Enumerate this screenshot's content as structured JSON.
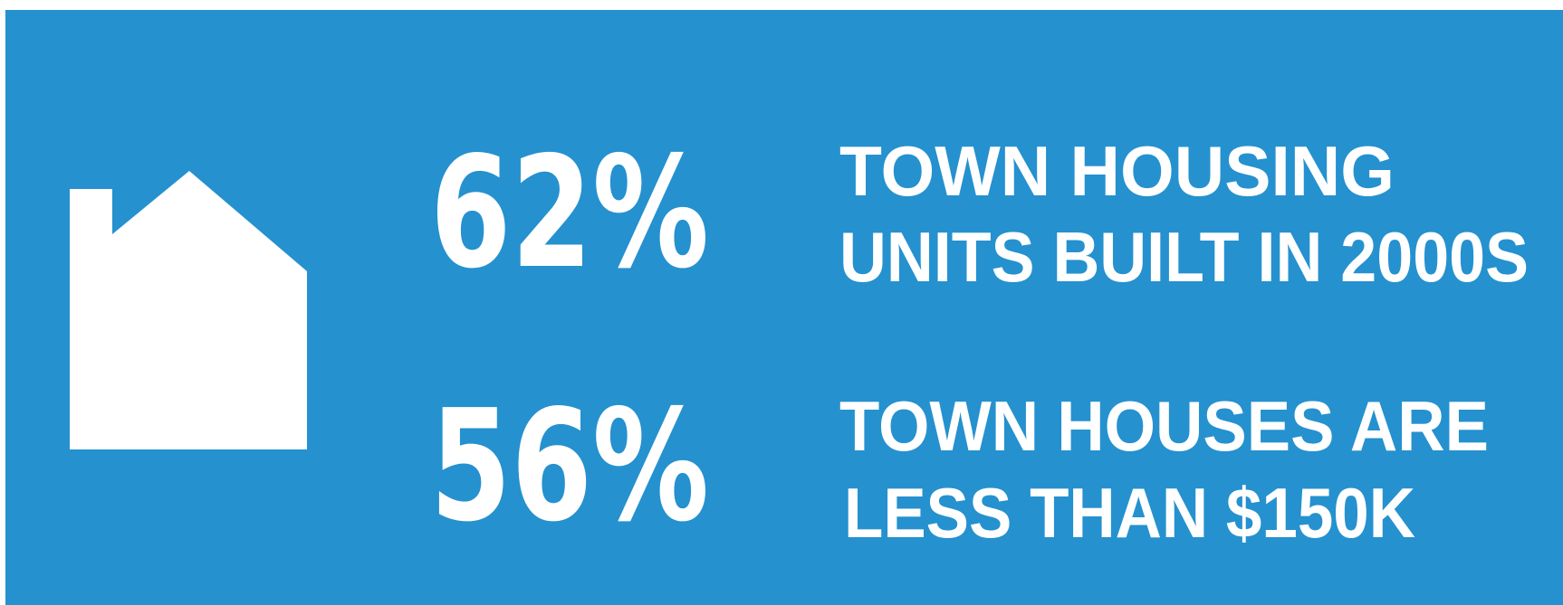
{
  "stats": [
    {
      "value": "62%",
      "label": [
        "TOWN HOUSING",
        "UNITS BUILT IN 2000S"
      ]
    },
    {
      "value": "56%",
      "label": [
        "TOWN HOUSES ARE",
        "LESS THAN $150K"
      ]
    }
  ]
}
